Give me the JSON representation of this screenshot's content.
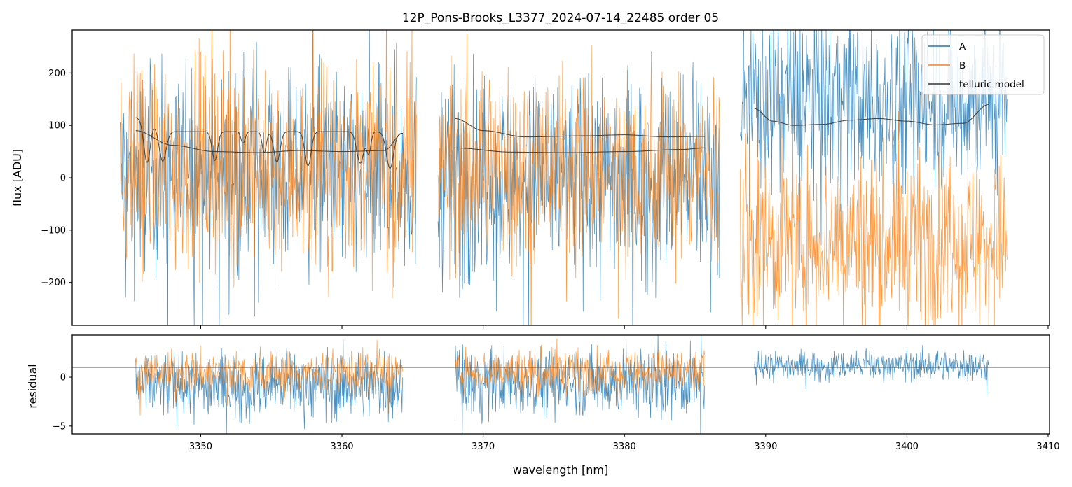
{
  "chart_data": {
    "type": "line",
    "title": "12P_Pons-Brooks_L3377_2024-07-14_22485  order 05",
    "xlabel": "wavelength [nm]",
    "xlim": [
      3340.9,
      3410.1
    ],
    "xticks": [
      3350,
      3360,
      3370,
      3380,
      3390,
      3400,
      3410
    ],
    "xtick_labels": [
      "3350",
      "3360",
      "3370",
      "3380",
      "3390",
      "3400",
      "3410"
    ],
    "legend": {
      "placement": "top-right",
      "entries": [
        {
          "label": "A",
          "color": "#1f77b4"
        },
        {
          "label": "B",
          "color": "#ff7f0e"
        },
        {
          "label": "telluric model",
          "color": "#333333"
        }
      ]
    },
    "panels": [
      {
        "name": "flux",
        "ylabel": "flux [ADU]",
        "ylim": [
          -282,
          282
        ],
        "yticks": [
          -200,
          -100,
          0,
          100,
          200
        ],
        "ytick_labels": [
          "−200",
          "−100",
          "0",
          "100",
          "200"
        ],
        "segments": [
          {
            "x_start": 3344.3,
            "x_end": 3365.3,
            "A_mean": 10,
            "A_noise": 110,
            "B_mean": 20,
            "B_noise": 115
          },
          {
            "x_start": 3366.8,
            "x_end": 3386.8,
            "A_mean": 0,
            "A_noise": 115,
            "B_mean": 20,
            "B_noise": 110
          },
          {
            "x_start": 3388.2,
            "x_end": 3407.1,
            "A_mean": 150,
            "A_noise": 100,
            "B_mean": -120,
            "B_noise": 95
          }
        ],
        "telluric_model": [
          {
            "name": "model A seg1",
            "x": [
              3345.4,
              3348,
              3351,
              3354,
              3357,
              3360,
              3363,
              3364.3
            ],
            "y": [
              90,
              62,
              50,
              48,
              52,
              50,
              52,
              85
            ]
          },
          {
            "name": "model B seg1",
            "x": [
              3345.4,
              3346,
              3348,
              3350,
              3354,
              3358,
              3362,
              3364.3
            ],
            "y": [
              115,
              108,
              88,
              88,
              88,
              88,
              88,
              85
            ],
            "absorption_lines": [
              {
                "x": 3346.2,
                "depth": 78,
                "width": 0.22
              },
              {
                "x": 3347.3,
                "depth": 62,
                "width": 0.25
              },
              {
                "x": 3351.0,
                "depth": 55,
                "width": 0.2
              },
              {
                "x": 3353.0,
                "depth": 22,
                "width": 0.15
              },
              {
                "x": 3354.5,
                "depth": 40,
                "width": 0.15
              },
              {
                "x": 3355.4,
                "depth": 58,
                "width": 0.22
              },
              {
                "x": 3357.6,
                "depth": 65,
                "width": 0.22
              },
              {
                "x": 3361.3,
                "depth": 60,
                "width": 0.25
              },
              {
                "x": 3361.9,
                "depth": 40,
                "width": 0.15
              },
              {
                "x": 3363.4,
                "depth": 68,
                "width": 0.25
              }
            ]
          },
          {
            "name": "model A seg2",
            "x": [
              3368,
              3372,
              3376,
              3380,
              3384,
              3385.7
            ],
            "y": [
              57,
              49,
              48,
              50,
              54,
              57
            ]
          },
          {
            "name": "model B seg2",
            "x": [
              3368,
              3370,
              3373,
              3377,
              3380,
              3383,
              3385.7
            ],
            "y": [
              113,
              90,
              78,
              80,
              82,
              78,
              79
            ]
          },
          {
            "name": "model seg3",
            "x": [
              3389.2,
              3390.5,
              3392,
              3394,
              3396,
              3398,
              3400,
              3402,
              3404,
              3405.8
            ],
            "y": [
              132,
              108,
              100,
              102,
              110,
              113,
              108,
              101,
              104,
              140
            ]
          }
        ]
      },
      {
        "name": "residual",
        "ylabel": "residual",
        "ylim": [
          -5.8,
          4.3
        ],
        "yticks": [
          -5,
          0
        ],
        "ytick_labels": [
          "−5",
          "0"
        ],
        "reference_line_y": 1.0,
        "segments": [
          {
            "x_start": 3345.4,
            "x_end": 3364.3,
            "A_mean": -0.8,
            "A_noise": 2.0,
            "B_mean": 0.5,
            "B_noise": 1.3
          },
          {
            "x_start": 3368.0,
            "x_end": 3385.7,
            "A_mean": -0.5,
            "A_noise": 2.0,
            "B_mean": 0.6,
            "B_noise": 1.3
          },
          {
            "x_start": 3389.2,
            "x_end": 3405.8,
            "A_mean": 1.2,
            "A_noise": 0.9
          }
        ]
      }
    ]
  }
}
